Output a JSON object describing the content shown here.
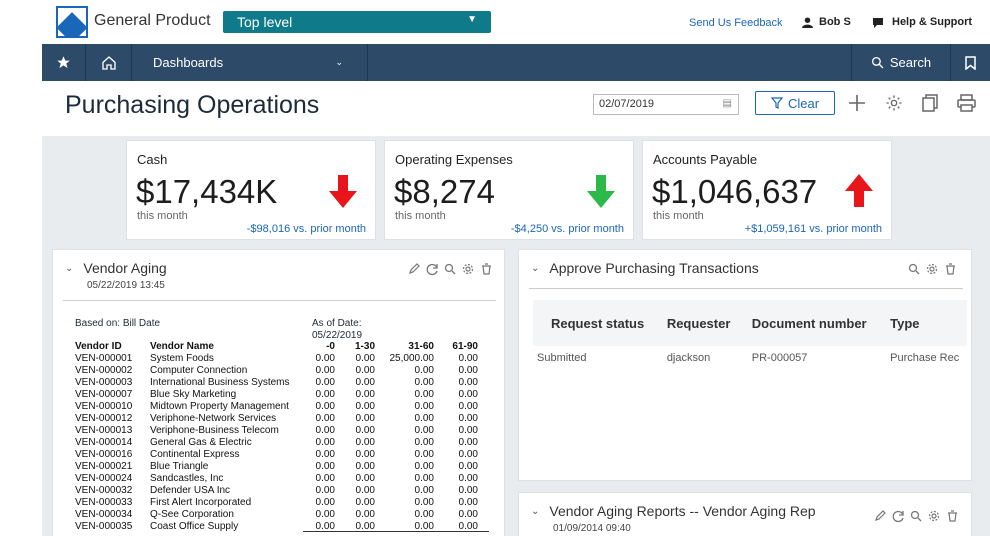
{
  "header": {
    "product": "General Product",
    "level_select": "Top level",
    "feedback": "Send Us Feedback",
    "user": "Bob S",
    "help": "Help & Support"
  },
  "nav": {
    "dashboards": "Dashboards",
    "search": "Search"
  },
  "page": {
    "title": "Purchasing Operations",
    "date": "02/07/2019",
    "clear": "Clear"
  },
  "kpis": [
    {
      "label": "Cash",
      "value": "$17,434K",
      "sub": "this month",
      "delta": "-$98,016 vs. prior month",
      "arrow": "down",
      "color": "#e8161b"
    },
    {
      "label": "Operating Expenses",
      "value": "$8,274",
      "sub": "this month",
      "delta": "-$4,250 vs. prior month",
      "arrow": "down",
      "color": "#2db84a"
    },
    {
      "label": "Accounts Payable",
      "value": "$1,046,637",
      "sub": "this month",
      "delta": "+$1,059,161 vs. prior month",
      "arrow": "up",
      "color": "#e8161b"
    }
  ],
  "vendor_aging": {
    "title": "Vendor Aging",
    "timestamp": "05/22/2019 13:45",
    "based_on": "Based on: Bill Date",
    "as_of_label": "As of Date:",
    "as_of_date": "05/22/2019",
    "columns": [
      "Vendor ID",
      "Vendor Name",
      "-0",
      "1-30",
      "31-60",
      "61-90"
    ],
    "rows": [
      [
        "VEN-000001",
        "System Foods",
        "0.00",
        "0.00",
        "25,000.00",
        "0.00"
      ],
      [
        "VEN-000002",
        "Computer Connection",
        "0.00",
        "0.00",
        "0.00",
        "0.00"
      ],
      [
        "VEN-000003",
        "International Business Systems",
        "0.00",
        "0.00",
        "0.00",
        "0.00"
      ],
      [
        "VEN-000007",
        "Blue Sky Marketing",
        "0.00",
        "0.00",
        "0.00",
        "0.00"
      ],
      [
        "VEN-000010",
        "Midtown Property Management",
        "0.00",
        "0.00",
        "0.00",
        "0.00"
      ],
      [
        "VEN-000012",
        "Veriphone-Network Services",
        "0.00",
        "0.00",
        "0.00",
        "0.00"
      ],
      [
        "VEN-000013",
        "Veriphone-Business Telecom",
        "0.00",
        "0.00",
        "0.00",
        "0.00"
      ],
      [
        "VEN-000014",
        "General Gas & Electric",
        "0.00",
        "0.00",
        "0.00",
        "0.00"
      ],
      [
        "VEN-000016",
        "Continental Express",
        "0.00",
        "0.00",
        "0.00",
        "0.00"
      ],
      [
        "VEN-000021",
        "Blue Triangle",
        "0.00",
        "0.00",
        "0.00",
        "0.00"
      ],
      [
        "VEN-000024",
        "Sandcastles, Inc",
        "0.00",
        "0.00",
        "0.00",
        "0.00"
      ],
      [
        "VEN-000032",
        "Defender USA Inc",
        "0.00",
        "0.00",
        "0.00",
        "0.00"
      ],
      [
        "VEN-000033",
        "First Alert Incorporated",
        "0.00",
        "0.00",
        "0.00",
        "0.00"
      ],
      [
        "VEN-000034",
        "Q-See Corporation",
        "0.00",
        "0.00",
        "0.00",
        "0.00"
      ],
      [
        "VEN-000035",
        "Coast Office Supply",
        "0.00",
        "0.00",
        "0.00",
        "0.00"
      ]
    ]
  },
  "approve": {
    "title": "Approve Purchasing Transactions",
    "columns": [
      "Request status",
      "Requester",
      "Document number",
      "Type"
    ],
    "row": [
      "Submitted",
      "djackson",
      "PR-000057",
      "Purchase Rec"
    ]
  },
  "aging_reports": {
    "title": "Vendor Aging Reports -- Vendor Aging Rep",
    "timestamp": "01/09/2014 09:40"
  }
}
